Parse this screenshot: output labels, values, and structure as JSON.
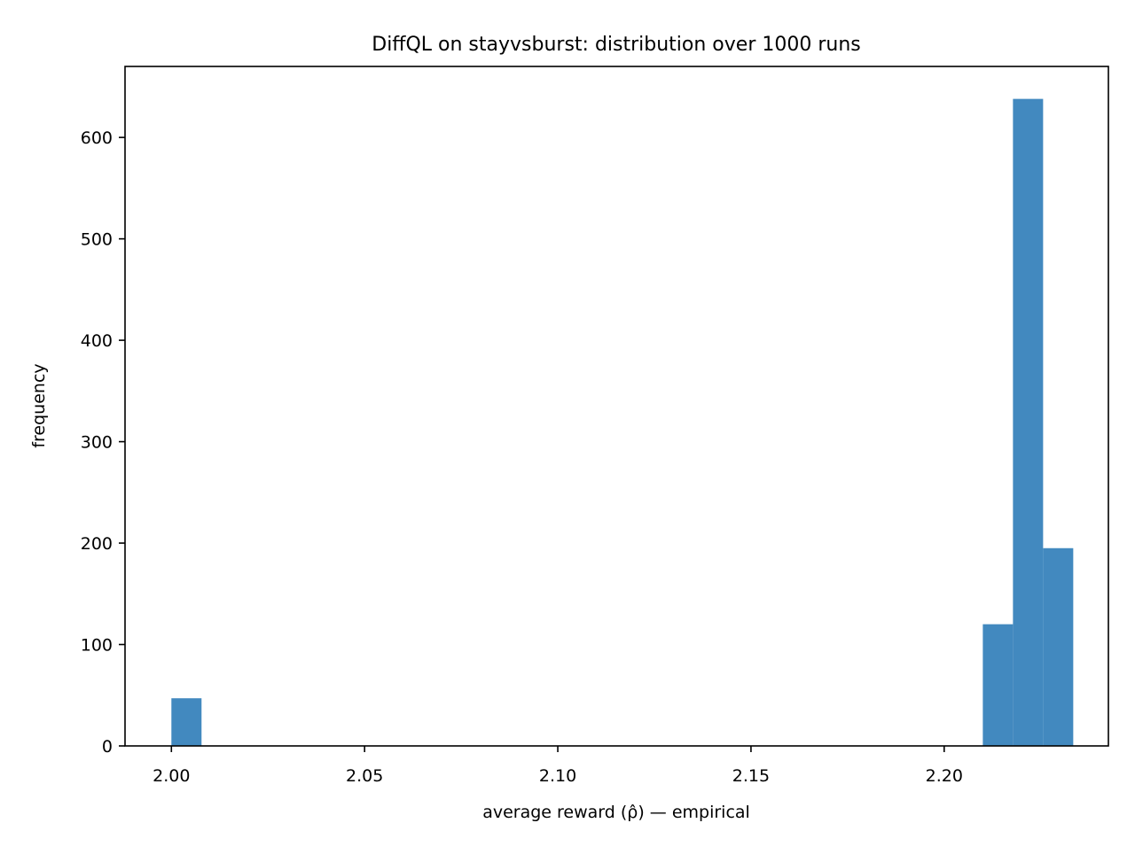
{
  "chart_data": {
    "type": "bar",
    "title": "DiffQL on stayvsburst: distribution over 1000 runs",
    "xlabel": "average reward (ρ̂) — empirical",
    "ylabel": "frequency",
    "xlim": [
      1.988,
      2.2425
    ],
    "ylim": [
      0,
      670
    ],
    "xticks": [
      2.0,
      2.05,
      2.1,
      2.15,
      2.2
    ],
    "xtick_labels": [
      "2.00",
      "2.05",
      "2.10",
      "2.15",
      "2.20"
    ],
    "yticks": [
      0,
      100,
      200,
      300,
      400,
      500,
      600
    ],
    "ytick_labels": [
      "0",
      "100",
      "200",
      "300",
      "400",
      "500",
      "600"
    ],
    "grid": false,
    "bar_color": "#4289bf",
    "bins": [
      {
        "x0": 2.0,
        "x1": 2.0078,
        "value": 47
      },
      {
        "x0": 2.21,
        "x1": 2.2178,
        "value": 120
      },
      {
        "x0": 2.2178,
        "x1": 2.2256,
        "value": 638
      },
      {
        "x0": 2.2256,
        "x1": 2.2334,
        "value": 195
      }
    ]
  }
}
